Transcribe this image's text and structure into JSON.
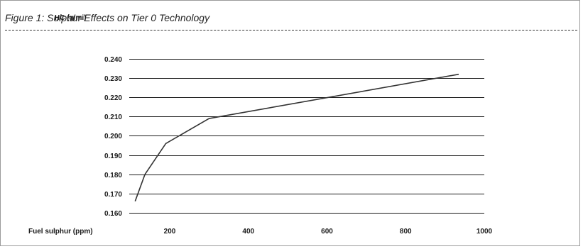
{
  "figure": {
    "title": "Figure 1: Sulphur Effects on Tier 0 Technology"
  },
  "chart_data": {
    "type": "line",
    "title": "Figure 1: Sulphur Effects on Tier 0 Technology",
    "xlabel": "Fuel sulphur (ppm)",
    "ylabel": "HC (g/mi)",
    "xlim": [
      100,
      1000
    ],
    "ylim": [
      0.16,
      0.24
    ],
    "x_ticks": [
      200,
      400,
      600,
      800,
      1000
    ],
    "x_tick_labels": [
      "200",
      "400",
      "600",
      "800",
      "1000"
    ],
    "y_ticks": [
      0.16,
      0.17,
      0.18,
      0.19,
      0.2,
      0.21,
      0.22,
      0.23,
      0.24
    ],
    "y_tick_labels": [
      "0.160",
      "0.170",
      "0.180",
      "0.190",
      "0.200",
      "0.210",
      "0.220",
      "0.230",
      "0.240"
    ],
    "grid": "horizontal",
    "line_color": "#333333",
    "grid_color": "#1a1a1a",
    "series": [
      {
        "x": [
          112,
          137,
          190,
          300,
          935
        ],
        "values": [
          0.166,
          0.18,
          0.196,
          0.209,
          0.232
        ]
      }
    ]
  }
}
